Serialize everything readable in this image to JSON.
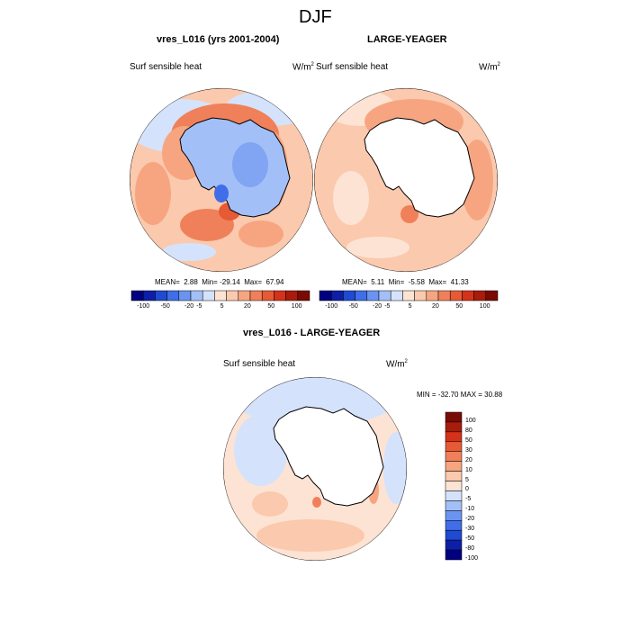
{
  "page_title": "DJF",
  "colors": {
    "scale": [
      "#000080",
      "#0d1fa6",
      "#1f4ad1",
      "#3f6ee8",
      "#6b93f0",
      "#a3bff7",
      "#d4e3fb",
      "#fde3d3",
      "#fbc9ad",
      "#f7a581",
      "#f0805a",
      "#e75a36",
      "#d4321a",
      "#a81c0c",
      "#7a0b03"
    ],
    "land": "#ffffff",
    "coast": "#000000"
  },
  "panels": [
    {
      "title": "vres_L016 (yrs 2001-2004)",
      "variable": "Surf sensible heat",
      "units": "W/m",
      "units_sup": "2",
      "stats": {
        "mean_label": "MEAN=",
        "mean": "2.88",
        "min_label": "Min=",
        "min": "-29.14",
        "max_label": "Max=",
        "max": "67.94"
      },
      "colorbar_labels": [
        "-100",
        "-50",
        "-20",
        "-5",
        "5",
        "20",
        "50",
        "100"
      ]
    },
    {
      "title": "LARGE-YEAGER",
      "variable": "Surf sensible heat",
      "units": "W/m",
      "units_sup": "2",
      "stats": {
        "mean_label": "MEAN=",
        "mean": "5.11",
        "min_label": "Min=",
        "min": "-5.58",
        "max_label": "Max=",
        "max": "41.33"
      },
      "colorbar_labels": [
        "-100",
        "-50",
        "-20",
        "-5",
        "5",
        "20",
        "50",
        "100"
      ]
    },
    {
      "title": "vres_L016 - LARGE-YEAGER",
      "variable": "Surf sensible heat",
      "units": "W/m",
      "units_sup": "2",
      "stats_text": "MIN = -32.70 MAX =  30.88",
      "colorbar_labels": [
        "100",
        "80",
        "50",
        "30",
        "20",
        "10",
        "5",
        "0",
        "-5",
        "-10",
        "-20",
        "-30",
        "-50",
        "-80",
        "-100"
      ]
    }
  ]
}
